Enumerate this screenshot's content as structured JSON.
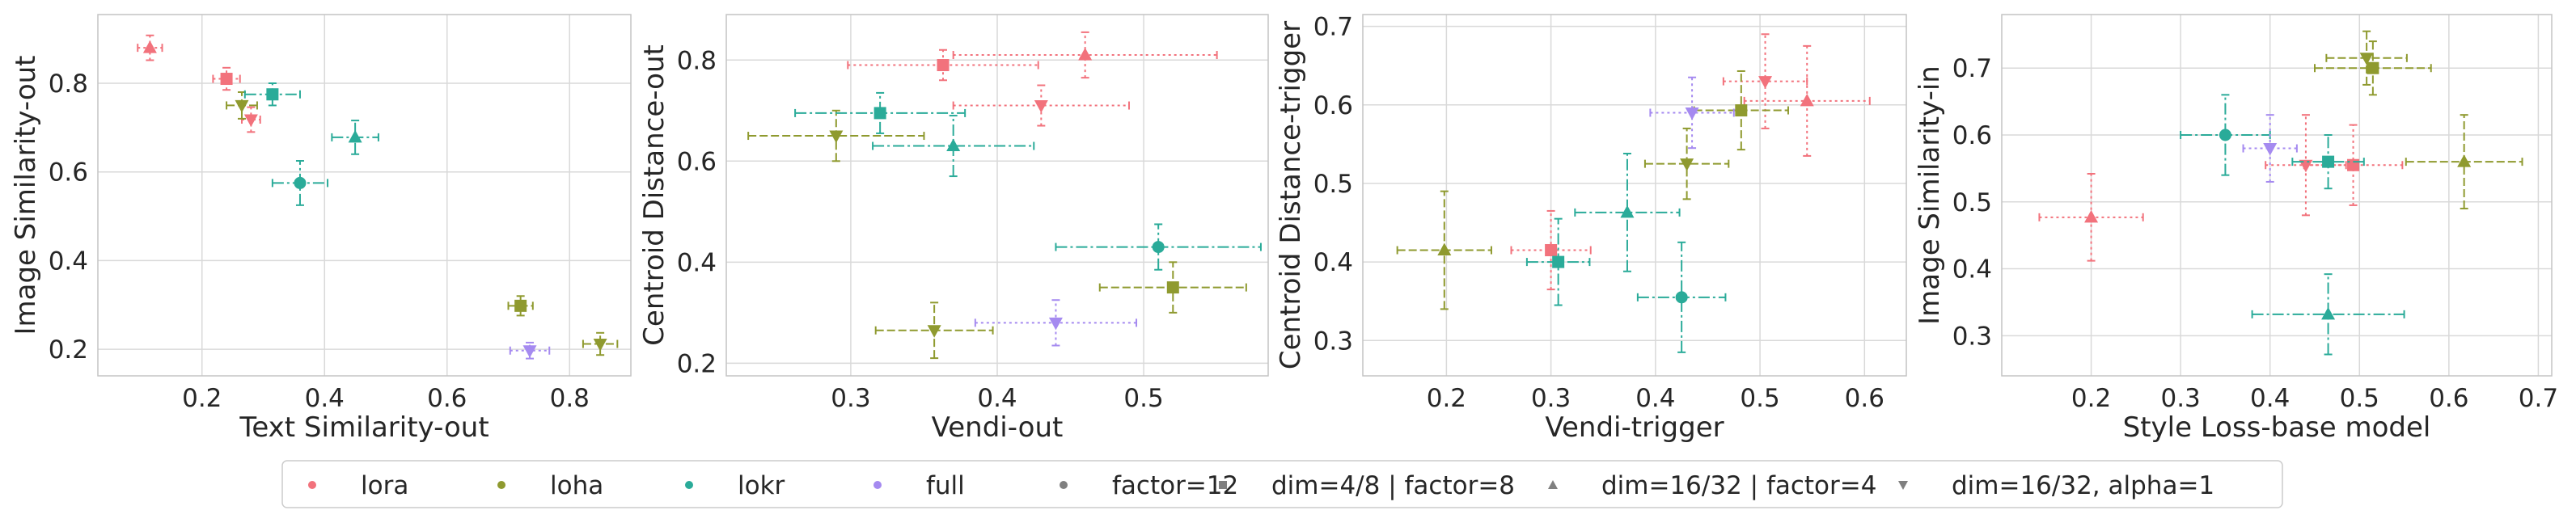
{
  "colors": {
    "lora": "#f2727c",
    "loha": "#8f9a2f",
    "lokr": "#2aab99",
    "full": "#a58af0",
    "neutral": "#808080",
    "grid": "#d9d9d9",
    "spine": "#c4c4c4"
  },
  "legend": {
    "items": [
      {
        "label": "lora",
        "color": "lora",
        "marker": "circle"
      },
      {
        "label": "loha",
        "color": "loha",
        "marker": "circle"
      },
      {
        "label": "lokr",
        "color": "lokr",
        "marker": "circle"
      },
      {
        "label": "full",
        "color": "full",
        "marker": "circle"
      },
      {
        "label": "factor=12",
        "color": "neutral",
        "marker": "circle"
      },
      {
        "label": "dim=4/8 | factor=8",
        "color": "neutral",
        "marker": "square"
      },
      {
        "label": "dim=16/32 | factor=4",
        "color": "neutral",
        "marker": "triangle-up"
      },
      {
        "label": "dim=16/32, alpha=1",
        "color": "neutral",
        "marker": "triangle-down"
      }
    ],
    "placement": "bottom-center"
  },
  "chart_data": [
    {
      "type": "scatter",
      "xlabel": "Text Similarity-out",
      "ylabel": "Image Similarity-out",
      "xlim": [
        0.03,
        0.9
      ],
      "ylim": [
        0.14,
        0.955
      ],
      "xticks": [
        "0.2",
        "0.4",
        "0.6",
        "0.8"
      ],
      "yticks": [
        "0.2",
        "0.4",
        "0.6",
        "0.8"
      ],
      "xtick_values": [
        0.2,
        0.4,
        0.6,
        0.8
      ],
      "ytick_values": [
        0.2,
        0.4,
        0.6,
        0.8
      ],
      "grid": true,
      "points": [
        {
          "method": "lora",
          "marker": "triangle-up",
          "x": 0.115,
          "y": 0.88,
          "xerr": 0.02,
          "yerr": 0.028
        },
        {
          "method": "lora",
          "marker": "square",
          "x": 0.24,
          "y": 0.81,
          "xerr": 0.022,
          "yerr": 0.025
        },
        {
          "method": "lora",
          "marker": "triangle-down",
          "x": 0.28,
          "y": 0.718,
          "xerr": 0.015,
          "yerr": 0.028
        },
        {
          "method": "loha",
          "marker": "triangle-down",
          "x": 0.265,
          "y": 0.75,
          "xerr": 0.025,
          "yerr": 0.03
        },
        {
          "method": "loha",
          "marker": "square",
          "x": 0.72,
          "y": 0.298,
          "xerr": 0.02,
          "yerr": 0.022
        },
        {
          "method": "loha",
          "marker": "triangle-down",
          "x": 0.85,
          "y": 0.212,
          "xerr": 0.028,
          "yerr": 0.025
        },
        {
          "method": "lokr",
          "marker": "square",
          "x": 0.315,
          "y": 0.775,
          "xerr": 0.045,
          "yerr": 0.025
        },
        {
          "method": "lokr",
          "marker": "triangle-up",
          "x": 0.45,
          "y": 0.678,
          "xerr": 0.038,
          "yerr": 0.038
        },
        {
          "method": "lokr",
          "marker": "circle",
          "x": 0.36,
          "y": 0.575,
          "xerr": 0.045,
          "yerr": 0.05
        },
        {
          "method": "full",
          "marker": "triangle-down",
          "x": 0.735,
          "y": 0.197,
          "xerr": 0.032,
          "yerr": 0.018
        }
      ]
    },
    {
      "type": "scatter",
      "xlabel": "Vendi-out",
      "ylabel": "Centroid Distance-out",
      "xlim": [
        0.215,
        0.585
      ],
      "ylim": [
        0.175,
        0.89
      ],
      "xticks": [
        "0.3",
        "0.4",
        "0.5"
      ],
      "yticks": [
        "0.2",
        "0.4",
        "0.6",
        "0.8"
      ],
      "xtick_values": [
        0.3,
        0.4,
        0.5
      ],
      "ytick_values": [
        0.2,
        0.4,
        0.6,
        0.8
      ],
      "grid": true,
      "points": [
        {
          "method": "lora",
          "marker": "square",
          "x": 0.363,
          "y": 0.79,
          "xerr": 0.065,
          "yerr": 0.03
        },
        {
          "method": "lora",
          "marker": "triangle-up",
          "x": 0.46,
          "y": 0.81,
          "xerr": 0.09,
          "yerr": 0.045
        },
        {
          "method": "lora",
          "marker": "triangle-down",
          "x": 0.43,
          "y": 0.71,
          "xerr": 0.06,
          "yerr": 0.04
        },
        {
          "method": "loha",
          "marker": "triangle-down",
          "x": 0.29,
          "y": 0.65,
          "xerr": 0.06,
          "yerr": 0.05
        },
        {
          "method": "loha",
          "marker": "triangle-down",
          "x": 0.357,
          "y": 0.265,
          "xerr": 0.04,
          "yerr": 0.055
        },
        {
          "method": "loha",
          "marker": "square",
          "x": 0.52,
          "y": 0.35,
          "xerr": 0.05,
          "yerr": 0.05
        },
        {
          "method": "lokr",
          "marker": "square",
          "x": 0.32,
          "y": 0.695,
          "xerr": 0.058,
          "yerr": 0.04
        },
        {
          "method": "lokr",
          "marker": "triangle-up",
          "x": 0.37,
          "y": 0.63,
          "xerr": 0.055,
          "yerr": 0.06
        },
        {
          "method": "lokr",
          "marker": "circle",
          "x": 0.51,
          "y": 0.43,
          "xerr": 0.07,
          "yerr": 0.045
        },
        {
          "method": "full",
          "marker": "triangle-down",
          "x": 0.44,
          "y": 0.28,
          "xerr": 0.055,
          "yerr": 0.045
        }
      ]
    },
    {
      "type": "scatter",
      "xlabel": "Vendi-trigger",
      "ylabel": "Centroid Distance-trigger",
      "xlim": [
        0.12,
        0.64
      ],
      "ylim": [
        0.255,
        0.715
      ],
      "xticks": [
        "0.2",
        "0.3",
        "0.4",
        "0.5",
        "0.6"
      ],
      "yticks": [
        "0.3",
        "0.4",
        "0.5",
        "0.6",
        "0.7"
      ],
      "xtick_values": [
        0.2,
        0.3,
        0.4,
        0.5,
        0.6
      ],
      "ytick_values": [
        0.3,
        0.4,
        0.5,
        0.6,
        0.7
      ],
      "grid": true,
      "points": [
        {
          "method": "lora",
          "marker": "square",
          "x": 0.3,
          "y": 0.415,
          "xerr": 0.038,
          "yerr": 0.05
        },
        {
          "method": "lora",
          "marker": "triangle-down",
          "x": 0.505,
          "y": 0.63,
          "xerr": 0.04,
          "yerr": 0.06
        },
        {
          "method": "lora",
          "marker": "triangle-up",
          "x": 0.545,
          "y": 0.605,
          "xerr": 0.06,
          "yerr": 0.07
        },
        {
          "method": "loha",
          "marker": "triangle-up",
          "x": 0.198,
          "y": 0.415,
          "xerr": 0.045,
          "yerr": 0.075
        },
        {
          "method": "loha",
          "marker": "triangle-down",
          "x": 0.43,
          "y": 0.525,
          "xerr": 0.04,
          "yerr": 0.045
        },
        {
          "method": "loha",
          "marker": "square",
          "x": 0.482,
          "y": 0.593,
          "xerr": 0.045,
          "yerr": 0.05
        },
        {
          "method": "lokr",
          "marker": "square",
          "x": 0.307,
          "y": 0.4,
          "xerr": 0.03,
          "yerr": 0.055
        },
        {
          "method": "lokr",
          "marker": "triangle-up",
          "x": 0.373,
          "y": 0.463,
          "xerr": 0.05,
          "yerr": 0.075
        },
        {
          "method": "lokr",
          "marker": "circle",
          "x": 0.425,
          "y": 0.355,
          "xerr": 0.042,
          "yerr": 0.07
        },
        {
          "method": "full",
          "marker": "triangle-down",
          "x": 0.435,
          "y": 0.59,
          "xerr": 0.04,
          "yerr": 0.045
        }
      ]
    },
    {
      "type": "scatter",
      "xlabel": "Style Loss-base model",
      "ylabel": "Image Similarity-in",
      "xlim": [
        0.1,
        0.715
      ],
      "ylim": [
        0.24,
        0.78
      ],
      "xticks": [
        "0.2",
        "0.3",
        "0.4",
        "0.5",
        "0.6",
        "0.7"
      ],
      "yticks": [
        "0.3",
        "0.4",
        "0.5",
        "0.6",
        "0.7"
      ],
      "xtick_values": [
        0.2,
        0.3,
        0.4,
        0.5,
        0.6,
        0.7
      ],
      "ytick_values": [
        0.3,
        0.4,
        0.5,
        0.6,
        0.7
      ],
      "grid": true,
      "points": [
        {
          "method": "lora",
          "marker": "triangle-up",
          "x": 0.2,
          "y": 0.477,
          "xerr": 0.058,
          "yerr": 0.065
        },
        {
          "method": "lora",
          "marker": "triangle-down",
          "x": 0.44,
          "y": 0.555,
          "xerr": 0.045,
          "yerr": 0.075
        },
        {
          "method": "lora",
          "marker": "square",
          "x": 0.493,
          "y": 0.555,
          "xerr": 0.055,
          "yerr": 0.06
        },
        {
          "method": "loha",
          "marker": "triangle-down",
          "x": 0.508,
          "y": 0.715,
          "xerr": 0.045,
          "yerr": 0.04
        },
        {
          "method": "loha",
          "marker": "square",
          "x": 0.515,
          "y": 0.7,
          "xerr": 0.065,
          "yerr": 0.04
        },
        {
          "method": "loha",
          "marker": "triangle-up",
          "x": 0.617,
          "y": 0.56,
          "xerr": 0.065,
          "yerr": 0.07
        },
        {
          "method": "lokr",
          "marker": "circle",
          "x": 0.35,
          "y": 0.6,
          "xerr": 0.05,
          "yerr": 0.06
        },
        {
          "method": "lokr",
          "marker": "square",
          "x": 0.465,
          "y": 0.56,
          "xerr": 0.04,
          "yerr": 0.04
        },
        {
          "method": "lokr",
          "marker": "triangle-up",
          "x": 0.465,
          "y": 0.332,
          "xerr": 0.085,
          "yerr": 0.06
        },
        {
          "method": "full",
          "marker": "triangle-down",
          "x": 0.4,
          "y": 0.58,
          "xerr": 0.03,
          "yerr": 0.05
        }
      ]
    }
  ]
}
